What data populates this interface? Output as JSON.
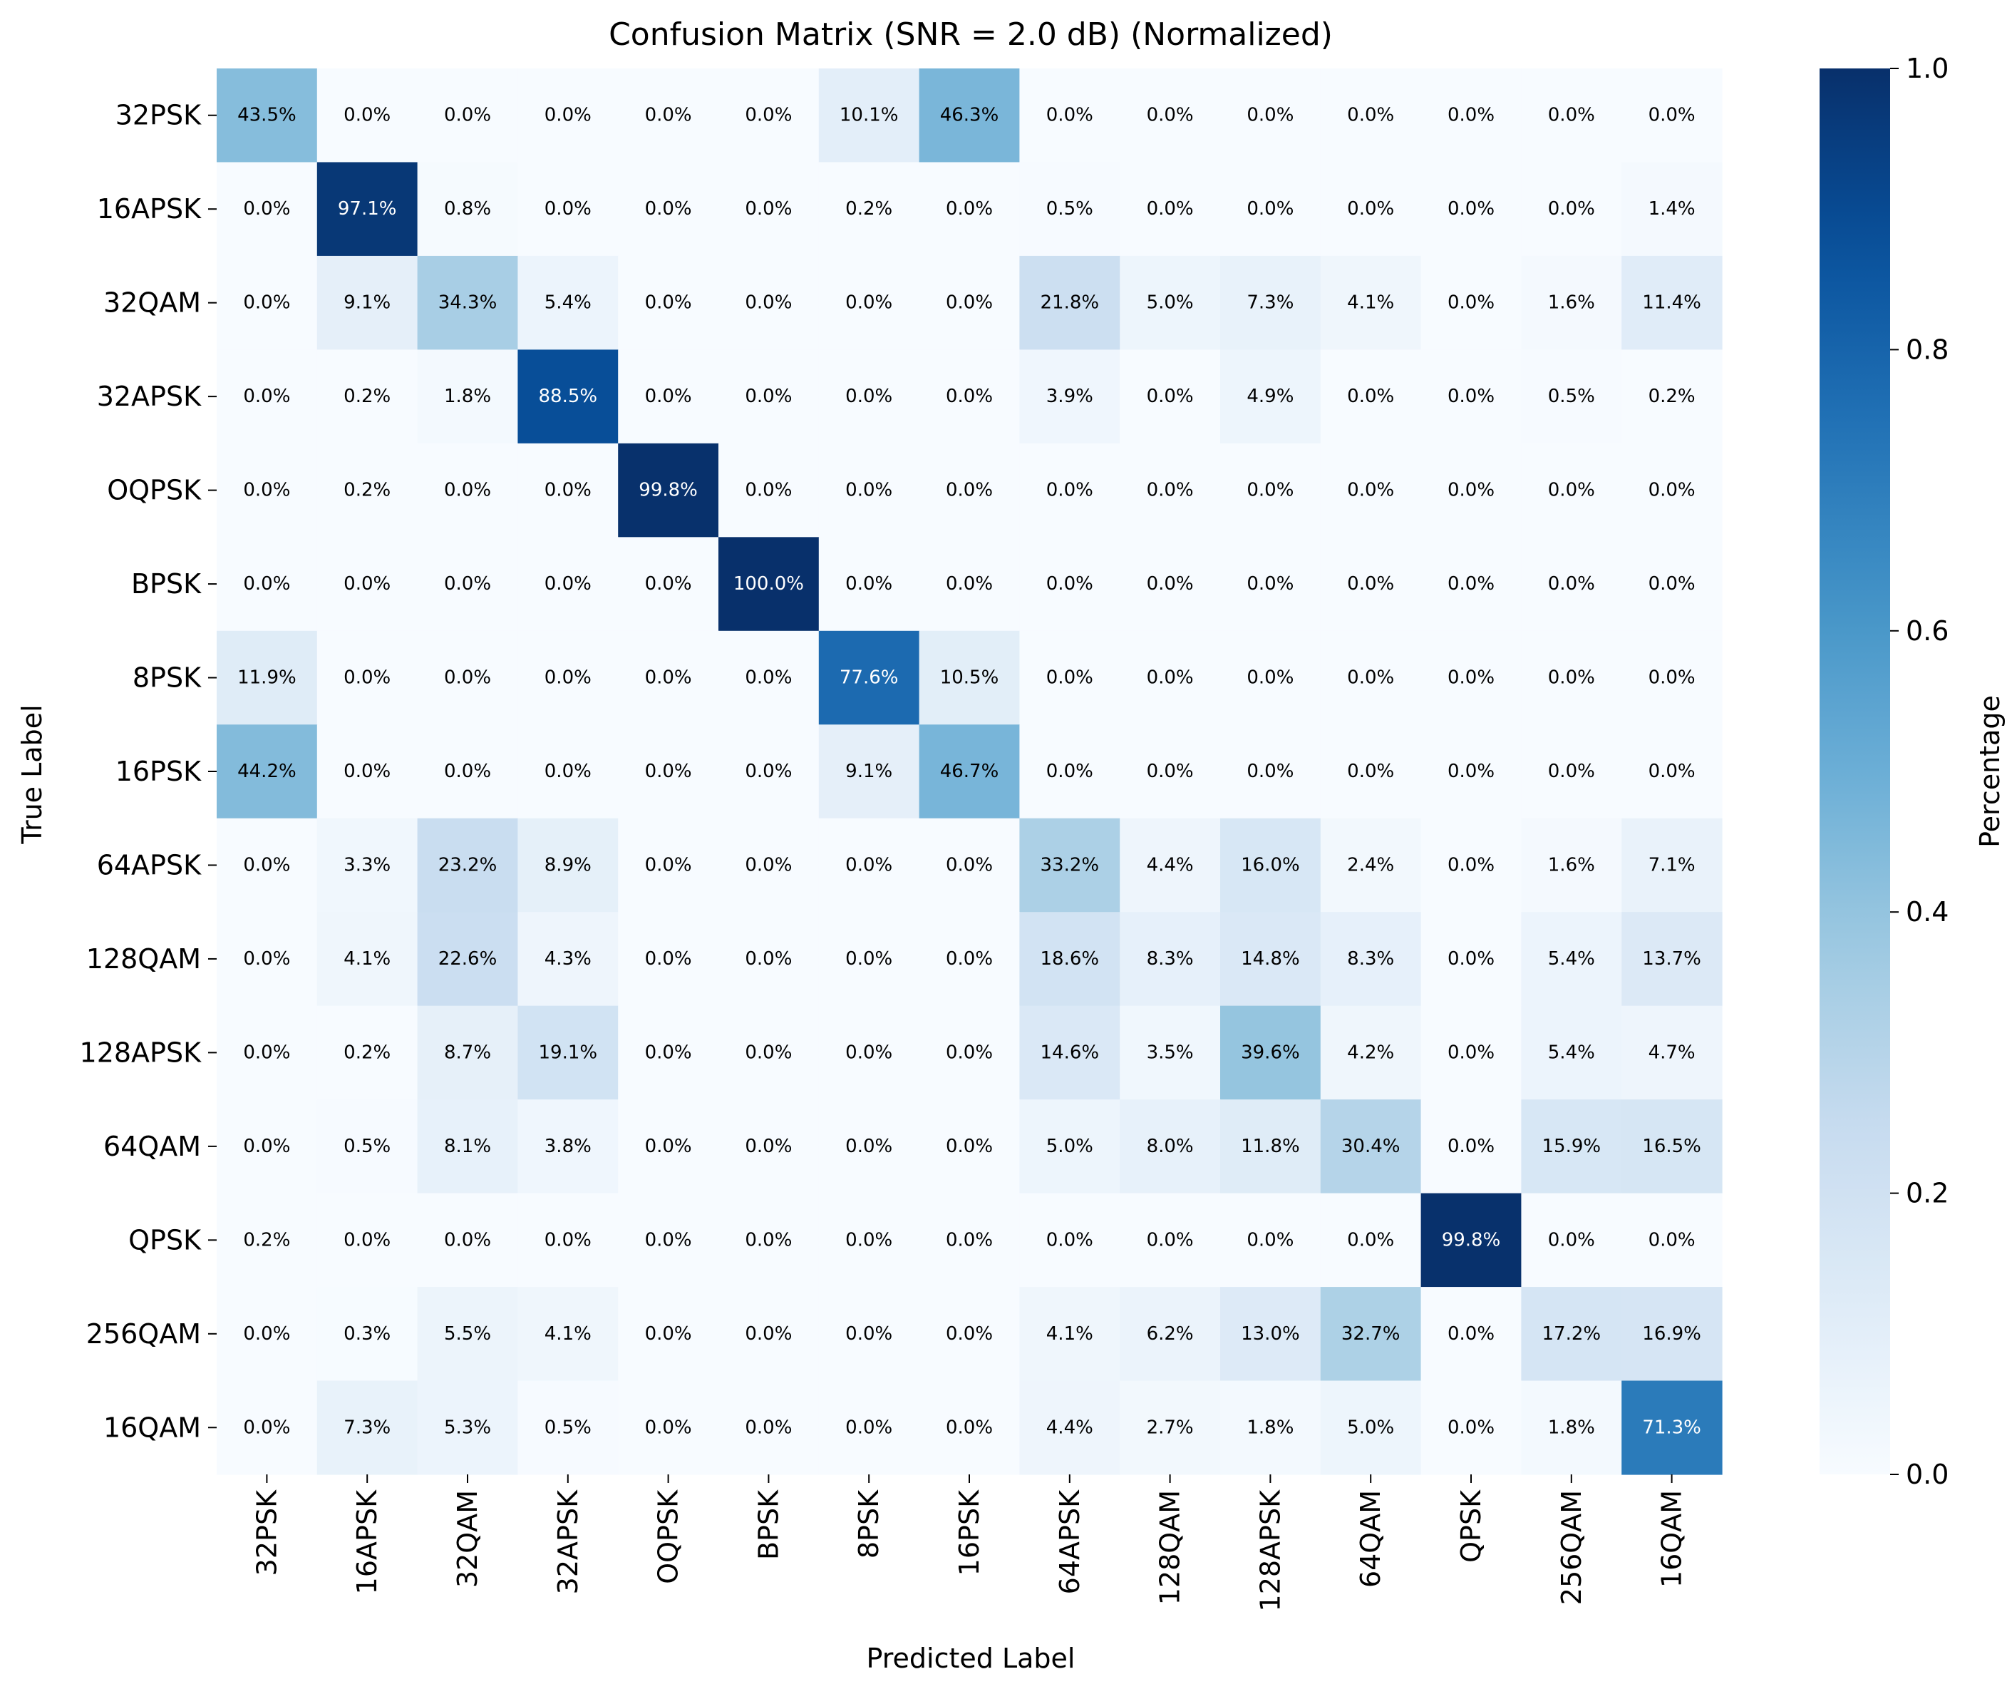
{
  "chart_data": {
    "type": "heatmap",
    "title": "Confusion Matrix (SNR = 2.0 dB) (Normalized)",
    "xlabel": "Predicted Label",
    "ylabel": "True Label",
    "x_categories": [
      "32PSK",
      "16APSK",
      "32QAM",
      "32APSK",
      "OQPSK",
      "BPSK",
      "8PSK",
      "16PSK",
      "64APSK",
      "128QAM",
      "128APSK",
      "64QAM",
      "QPSK",
      "256QAM",
      "16QAM"
    ],
    "y_categories": [
      "32PSK",
      "16APSK",
      "32QAM",
      "32APSK",
      "OQPSK",
      "BPSK",
      "8PSK",
      "16PSK",
      "64APSK",
      "128QAM",
      "128APSK",
      "64QAM",
      "QPSK",
      "256QAM",
      "16QAM"
    ],
    "values": [
      [
        43.5,
        0.0,
        0.0,
        0.0,
        0.0,
        0.0,
        10.1,
        46.3,
        0.0,
        0.0,
        0.0,
        0.0,
        0.0,
        0.0,
        0.0
      ],
      [
        0.0,
        97.1,
        0.8,
        0.0,
        0.0,
        0.0,
        0.2,
        0.0,
        0.5,
        0.0,
        0.0,
        0.0,
        0.0,
        0.0,
        1.4
      ],
      [
        0.0,
        9.1,
        34.3,
        5.4,
        0.0,
        0.0,
        0.0,
        0.0,
        21.8,
        5.0,
        7.3,
        4.1,
        0.0,
        1.6,
        11.4
      ],
      [
        0.0,
        0.2,
        1.8,
        88.5,
        0.0,
        0.0,
        0.0,
        0.0,
        3.9,
        0.0,
        4.9,
        0.0,
        0.0,
        0.5,
        0.2
      ],
      [
        0.0,
        0.2,
        0.0,
        0.0,
        99.8,
        0.0,
        0.0,
        0.0,
        0.0,
        0.0,
        0.0,
        0.0,
        0.0,
        0.0,
        0.0
      ],
      [
        0.0,
        0.0,
        0.0,
        0.0,
        0.0,
        100.0,
        0.0,
        0.0,
        0.0,
        0.0,
        0.0,
        0.0,
        0.0,
        0.0,
        0.0
      ],
      [
        11.9,
        0.0,
        0.0,
        0.0,
        0.0,
        0.0,
        77.6,
        10.5,
        0.0,
        0.0,
        0.0,
        0.0,
        0.0,
        0.0,
        0.0
      ],
      [
        44.2,
        0.0,
        0.0,
        0.0,
        0.0,
        0.0,
        9.1,
        46.7,
        0.0,
        0.0,
        0.0,
        0.0,
        0.0,
        0.0,
        0.0
      ],
      [
        0.0,
        3.3,
        23.2,
        8.9,
        0.0,
        0.0,
        0.0,
        0.0,
        33.2,
        4.4,
        16.0,
        2.4,
        0.0,
        1.6,
        7.1
      ],
      [
        0.0,
        4.1,
        22.6,
        4.3,
        0.0,
        0.0,
        0.0,
        0.0,
        18.6,
        8.3,
        14.8,
        8.3,
        0.0,
        5.4,
        13.7
      ],
      [
        0.0,
        0.2,
        8.7,
        19.1,
        0.0,
        0.0,
        0.0,
        0.0,
        14.6,
        3.5,
        39.6,
        4.2,
        0.0,
        5.4,
        4.7
      ],
      [
        0.0,
        0.5,
        8.1,
        3.8,
        0.0,
        0.0,
        0.0,
        0.0,
        5.0,
        8.0,
        11.8,
        30.4,
        0.0,
        15.9,
        16.5
      ],
      [
        0.2,
        0.0,
        0.0,
        0.0,
        0.0,
        0.0,
        0.0,
        0.0,
        0.0,
        0.0,
        0.0,
        0.0,
        99.8,
        0.0,
        0.0
      ],
      [
        0.0,
        0.3,
        5.5,
        4.1,
        0.0,
        0.0,
        0.0,
        0.0,
        4.1,
        6.2,
        13.0,
        32.7,
        0.0,
        17.2,
        16.9
      ],
      [
        0.0,
        7.3,
        5.3,
        0.5,
        0.0,
        0.0,
        0.0,
        0.0,
        4.4,
        2.7,
        1.8,
        5.0,
        0.0,
        1.8,
        71.3
      ]
    ],
    "value_format": "percent_1dp",
    "colormap": "Blues",
    "colorbar": {
      "label": "Percentage",
      "range": [
        0.0,
        1.0
      ],
      "ticks": [
        "0.0",
        "0.2",
        "0.4",
        "0.6",
        "0.8",
        "1.0"
      ]
    },
    "grid": false,
    "colors": {
      "low": "#f7fbff",
      "high": "#08306b",
      "text_light": "#ffffff",
      "text_dark": "#000000"
    }
  }
}
